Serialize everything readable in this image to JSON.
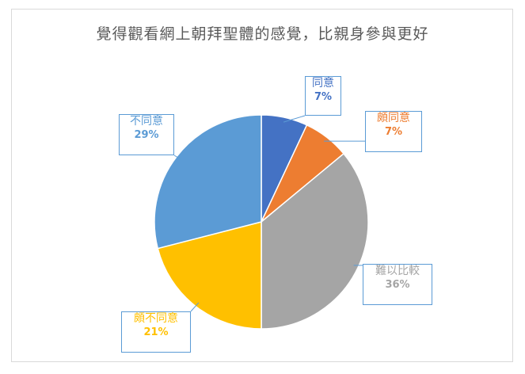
{
  "chart_data": {
    "type": "pie",
    "title": "覺得觀看網上朝拜聖體的感覺，比親身參與更好",
    "categories": [
      "同意",
      "頗同意",
      "難以比較",
      "頗不同意",
      "不同意"
    ],
    "values": [
      7,
      7,
      36,
      21,
      29
    ],
    "data_labels": [
      "7%",
      "7%",
      "36%",
      "21%",
      "29%"
    ],
    "colors": [
      "#4472c4",
      "#ed7d31",
      "#a5a5a5",
      "#ffc000",
      "#5b9bd5"
    ],
    "start_angle_deg": 0,
    "direction": "clockwise",
    "legend": "none"
  }
}
